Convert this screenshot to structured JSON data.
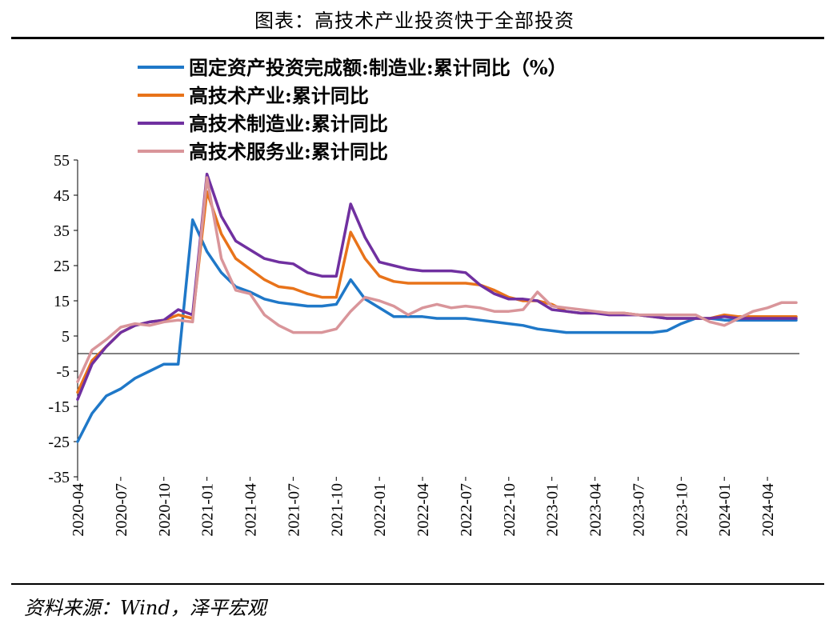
{
  "header": {
    "title": "图表：高技术产业投资快于全部投资"
  },
  "footer": {
    "source": "资料来源：Wind，泽平宏观"
  },
  "chart_data": {
    "type": "line",
    "title": "图表：高技术产业投资快于全部投资",
    "xlabel": "",
    "ylabel": "",
    "ylim": [
      -35,
      55
    ],
    "yticks": [
      55,
      45,
      35,
      25,
      15,
      5,
      -5,
      -15,
      -25,
      -35
    ],
    "x_ticks": [
      "2020-04",
      "2020-07",
      "2020-10",
      "2021-01",
      "2021-04",
      "2021-07",
      "2021-10",
      "2022-01",
      "2022-04",
      "2022-07",
      "2022-10",
      "2023-01",
      "2023-04",
      "2023-07",
      "2023-10",
      "2024-01",
      "2024-04"
    ],
    "x": [
      "2020-04",
      "2020-05",
      "2020-06",
      "2020-07",
      "2020-08",
      "2020-09",
      "2020-10",
      "2020-11",
      "2020-12",
      "2021-01",
      "2021-02",
      "2021-03",
      "2021-04",
      "2021-05",
      "2021-06",
      "2021-07",
      "2021-08",
      "2021-09",
      "2021-10",
      "2021-11",
      "2021-12",
      "2022-01",
      "2022-02",
      "2022-03",
      "2022-04",
      "2022-05",
      "2022-06",
      "2022-07",
      "2022-08",
      "2022-09",
      "2022-10",
      "2022-11",
      "2022-12",
      "2023-01",
      "2023-02",
      "2023-03",
      "2023-04",
      "2023-05",
      "2023-06",
      "2023-07",
      "2023-08",
      "2023-09",
      "2023-10",
      "2023-11",
      "2023-12",
      "2024-01",
      "2024-02",
      "2024-03",
      "2024-04",
      "2024-05",
      "2024-06"
    ],
    "grid": false,
    "legend_position": "top",
    "series": [
      {
        "name": "固定资产投资完成额:制造业:累计同比（%）",
        "color": "#1f78c8",
        "values": [
          -25,
          -17,
          -12,
          -10,
          -7,
          -5,
          -3,
          -3,
          38,
          29,
          23,
          19,
          17.5,
          15.5,
          14.5,
          14,
          13.5,
          13.5,
          14,
          21,
          15.5,
          13,
          10.5,
          10.5,
          10.5,
          10,
          10,
          10,
          9.5,
          9,
          8.5,
          8,
          7,
          6.5,
          6,
          6,
          6,
          6,
          6,
          6,
          6,
          6.5,
          8.5,
          10,
          10,
          9.5,
          9.5,
          9.5,
          9.5,
          9.5,
          9.5
        ]
      },
      {
        "name": "高技术产业:累计同比",
        "color": "#e8731a",
        "values": [
          -11,
          -2,
          2,
          6,
          8,
          9,
          9.5,
          11,
          10,
          46,
          34,
          27,
          24,
          21,
          19,
          18.5,
          17,
          16,
          16,
          34.5,
          27,
          22,
          20.5,
          20,
          20,
          20,
          20,
          20,
          19.5,
          18,
          16,
          15,
          15,
          14,
          12,
          11.5,
          11.5,
          11.5,
          11.5,
          11,
          10.5,
          10,
          10,
          10,
          10,
          11,
          10.5,
          10.5,
          10.5,
          10.5,
          10.5
        ]
      },
      {
        "name": "高技术制造业:累计同比",
        "color": "#7030a0",
        "values": [
          -13,
          -3,
          2,
          6,
          8,
          9,
          9.5,
          12.5,
          11,
          51,
          39,
          32,
          29.5,
          27,
          26,
          25.5,
          23,
          22,
          22,
          42.5,
          33,
          26,
          25,
          24,
          23.5,
          23.5,
          23.5,
          23,
          19.5,
          17,
          15.5,
          15.5,
          15,
          12.5,
          12,
          11.5,
          11.5,
          11,
          11,
          11,
          10.5,
          10,
          10,
          10,
          10,
          10.5,
          10,
          10,
          10,
          10,
          10
        ]
      },
      {
        "name": "高技术服务业:累计同比",
        "color": "#d9959a",
        "values": [
          -8,
          1,
          4,
          7.5,
          8.5,
          8,
          9,
          9.5,
          9,
          50,
          27,
          18,
          17,
          11,
          8,
          6,
          6,
          6,
          7,
          12,
          16,
          15,
          13.5,
          11,
          13,
          14,
          13,
          13.5,
          13,
          12,
          12,
          12.5,
          17.5,
          13.5,
          13,
          12.5,
          12,
          11.5,
          11.5,
          11,
          11,
          11,
          11,
          11,
          9,
          8,
          10,
          12,
          13,
          14.5,
          14.5
        ]
      }
    ]
  }
}
